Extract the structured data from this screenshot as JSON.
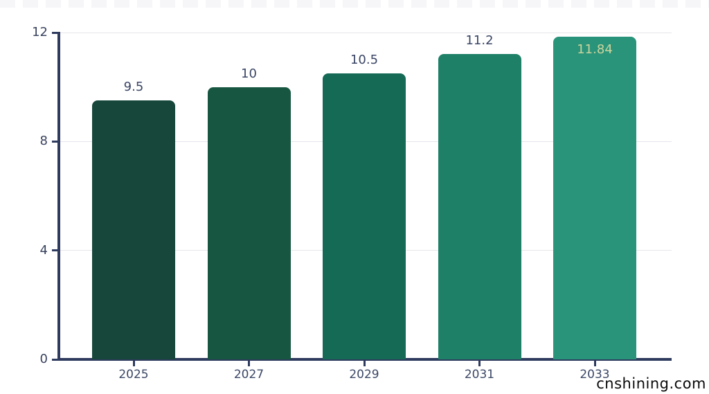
{
  "watermark": {
    "text": "cnshining.com"
  },
  "colors": {
    "axis": "#2e3a5e",
    "grid": "#e6e6ec",
    "tick_label": "#39425e",
    "value_label_above": "#3a4565",
    "value_label_inside": "#ccd49c"
  },
  "chart_data": {
    "type": "bar",
    "title": "",
    "xlabel": "",
    "ylabel": "",
    "ylim": [
      0,
      12
    ],
    "yticks": [
      0,
      4,
      8,
      12
    ],
    "grid": true,
    "legend": false,
    "categories": [
      "2025",
      "2027",
      "2029",
      "2031",
      "2033"
    ],
    "values": [
      9.5,
      10,
      10.5,
      11.2,
      11.84
    ],
    "value_labels": [
      "9.5",
      "10",
      "10.5",
      "11.2",
      "11.84"
    ],
    "points": [
      {
        "category": "2025",
        "value": 9.5,
        "label": "9.5",
        "color": "#16473a",
        "label_position": "above"
      },
      {
        "category": "2027",
        "value": 10,
        "label": "10",
        "color": "#175741",
        "label_position": "above"
      },
      {
        "category": "2029",
        "value": 10.5,
        "label": "10.5",
        "color": "#156a55",
        "label_position": "above"
      },
      {
        "category": "2031",
        "value": 11.2,
        "label": "11.2",
        "color": "#1e8067",
        "label_position": "above"
      },
      {
        "category": "2033",
        "value": 11.84,
        "label": "11.84",
        "color": "#2a947b",
        "label_position": "inside"
      }
    ]
  }
}
